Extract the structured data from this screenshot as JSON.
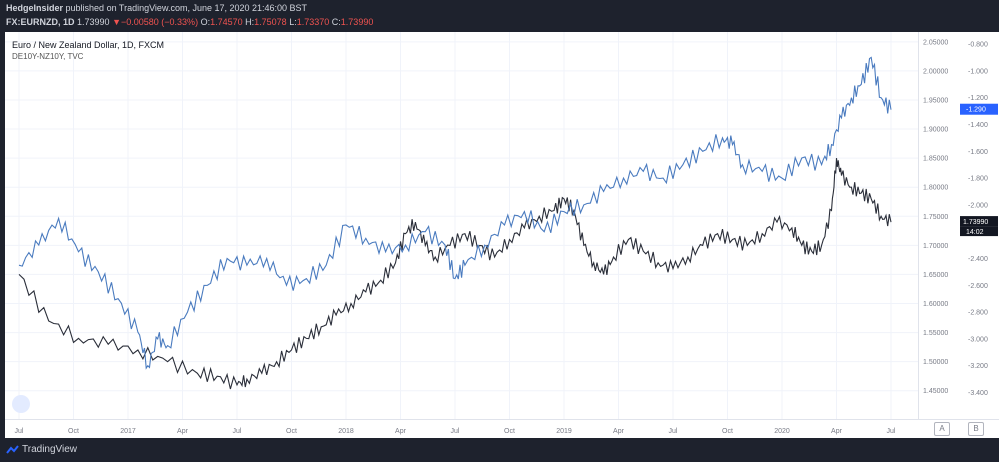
{
  "header": {
    "author": "HedgeInsider",
    "published": "published on TradingView.com, June 17, 2020 21:46:00 BST",
    "symbol": "FX:EURNZD, 1D",
    "last": "1.73990",
    "change": "▼−0.00580 (−0.33%)",
    "o_label": "O:",
    "o": "1.74570",
    "h_label": "H:",
    "h": "1.75078",
    "l_label": "L:",
    "l": "1.73370",
    "c_label": "C:",
    "c": "1.73990"
  },
  "legend": {
    "main": "Euro / New Zealand Dollar, 1D, FXCM",
    "overlay": "DE10Y-NZ10Y, TVC"
  },
  "footer": {
    "brand": "TradingView"
  },
  "scale_buttons": {
    "a": "A",
    "b": "B"
  },
  "colors": {
    "price": "#2a2e39",
    "spread": "#4a7bbf",
    "grid": "#f0f3fa",
    "text": "#787b86"
  },
  "chart_data": {
    "type": "line",
    "x_ticks": [
      "Jul",
      "Oct",
      "2017",
      "Apr",
      "Jul",
      "Oct",
      "2018",
      "Apr",
      "Jul",
      "Oct",
      "2019",
      "Apr",
      "Jul",
      "Oct",
      "2020",
      "Apr",
      "Jul"
    ],
    "y_left_ticks": [
      "2.05000",
      "2.00000",
      "1.95000",
      "1.90000",
      "1.85000",
      "1.80000",
      "1.75000",
      "1.70000",
      "1.65000",
      "1.60000",
      "1.55000",
      "1.50000",
      "1.45000"
    ],
    "y_right_ticks": [
      "-0.800",
      "-1.000",
      "-1.200",
      "-1.400",
      "-1.600",
      "-1.800",
      "-2.000",
      "-2.200",
      "-2.400",
      "-2.600",
      "-2.800",
      "-3.000",
      "-3.200",
      "-3.400"
    ],
    "price_ylim": [
      1.41,
      2.06
    ],
    "spread_ylim": [
      -3.56,
      -0.74
    ],
    "series": [
      {
        "name": "Euro / New Zealand Dollar, 1D, FXCM",
        "axis": "left",
        "points": [
          [
            0,
            1.65
          ],
          [
            3,
            1.57
          ],
          [
            6,
            1.54
          ],
          [
            9,
            1.53
          ],
          [
            12,
            1.52
          ],
          [
            15,
            1.5
          ],
          [
            18,
            1.48
          ],
          [
            20,
            1.475
          ],
          [
            22,
            1.46
          ],
          [
            23,
            1.47
          ],
          [
            24.5,
            1.48
          ],
          [
            26,
            1.5
          ],
          [
            27.5,
            1.52
          ],
          [
            29,
            1.54
          ],
          [
            30.5,
            1.56
          ],
          [
            32,
            1.58
          ],
          [
            33.5,
            1.6
          ],
          [
            35,
            1.62
          ],
          [
            36.5,
            1.64
          ],
          [
            38,
            1.67
          ],
          [
            39,
            1.72
          ],
          [
            40,
            1.74
          ],
          [
            41,
            1.7
          ],
          [
            42,
            1.68
          ],
          [
            43.5,
            1.7
          ],
          [
            45,
            1.72
          ],
          [
            46.5,
            1.7
          ],
          [
            48,
            1.68
          ],
          [
            49.5,
            1.71
          ],
          [
            51,
            1.73
          ],
          [
            52.5,
            1.75
          ],
          [
            54,
            1.76
          ],
          [
            55,
            1.78
          ],
          [
            56,
            1.76
          ],
          [
            57,
            1.7
          ],
          [
            58,
            1.67
          ],
          [
            59,
            1.65
          ],
          [
            60,
            1.68
          ],
          [
            61.5,
            1.71
          ],
          [
            63,
            1.69
          ],
          [
            64.5,
            1.67
          ],
          [
            66,
            1.66
          ],
          [
            67.5,
            1.68
          ],
          [
            69,
            1.7
          ],
          [
            70.5,
            1.72
          ],
          [
            72,
            1.71
          ],
          [
            73.5,
            1.7
          ],
          [
            75,
            1.72
          ],
          [
            76.5,
            1.74
          ],
          [
            78,
            1.73
          ],
          [
            79,
            1.7
          ],
          [
            80,
            1.69
          ],
          [
            81,
            1.7
          ],
          [
            82,
            1.76
          ],
          [
            82.5,
            1.85
          ],
          [
            83,
            1.82
          ],
          [
            84,
            1.8
          ],
          [
            85,
            1.79
          ],
          [
            86,
            1.78
          ],
          [
            87,
            1.75
          ],
          [
            88,
            1.74
          ]
        ]
      },
      {
        "name": "DE10Y-NZ10Y, TVC",
        "axis": "right",
        "points": [
          [
            0,
            -2.45
          ],
          [
            2,
            -2.3
          ],
          [
            4,
            -2.1
          ],
          [
            6,
            -2.35
          ],
          [
            8,
            -2.5
          ],
          [
            10,
            -2.7
          ],
          [
            12,
            -2.95
          ],
          [
            13,
            -3.2
          ],
          [
            14,
            -3.0
          ],
          [
            15,
            -3.05
          ],
          [
            17,
            -2.8
          ],
          [
            19,
            -2.6
          ],
          [
            21,
            -2.4
          ],
          [
            23,
            -2.45
          ],
          [
            25,
            -2.4
          ],
          [
            27,
            -2.6
          ],
          [
            29,
            -2.55
          ],
          [
            31,
            -2.45
          ],
          [
            33,
            -2.15
          ],
          [
            35,
            -2.25
          ],
          [
            37,
            -2.35
          ],
          [
            39,
            -2.3
          ],
          [
            41,
            -2.2
          ],
          [
            43,
            -2.3
          ],
          [
            44,
            -2.55
          ],
          [
            45,
            -2.45
          ],
          [
            47,
            -2.3
          ],
          [
            49,
            -2.15
          ],
          [
            51,
            -2.05
          ],
          [
            53,
            -2.2
          ],
          [
            55,
            -2.05
          ],
          [
            57,
            -2.0
          ],
          [
            59,
            -1.9
          ],
          [
            61,
            -1.8
          ],
          [
            63,
            -1.75
          ],
          [
            65,
            -1.8
          ],
          [
            67,
            -1.7
          ],
          [
            69,
            -1.6
          ],
          [
            71,
            -1.5
          ],
          [
            72,
            -1.55
          ],
          [
            73,
            -1.7
          ],
          [
            75,
            -1.75
          ],
          [
            77,
            -1.8
          ],
          [
            79,
            -1.65
          ],
          [
            81,
            -1.7
          ],
          [
            82,
            -1.55
          ],
          [
            83,
            -1.35
          ],
          [
            84,
            -1.2
          ],
          [
            85,
            -1.1
          ],
          [
            86,
            -0.9
          ],
          [
            87,
            -1.2
          ],
          [
            88,
            -1.29
          ]
        ]
      }
    ],
    "price_label": "1.73990",
    "price_time": "14:02",
    "spread_label": "-1.290"
  }
}
